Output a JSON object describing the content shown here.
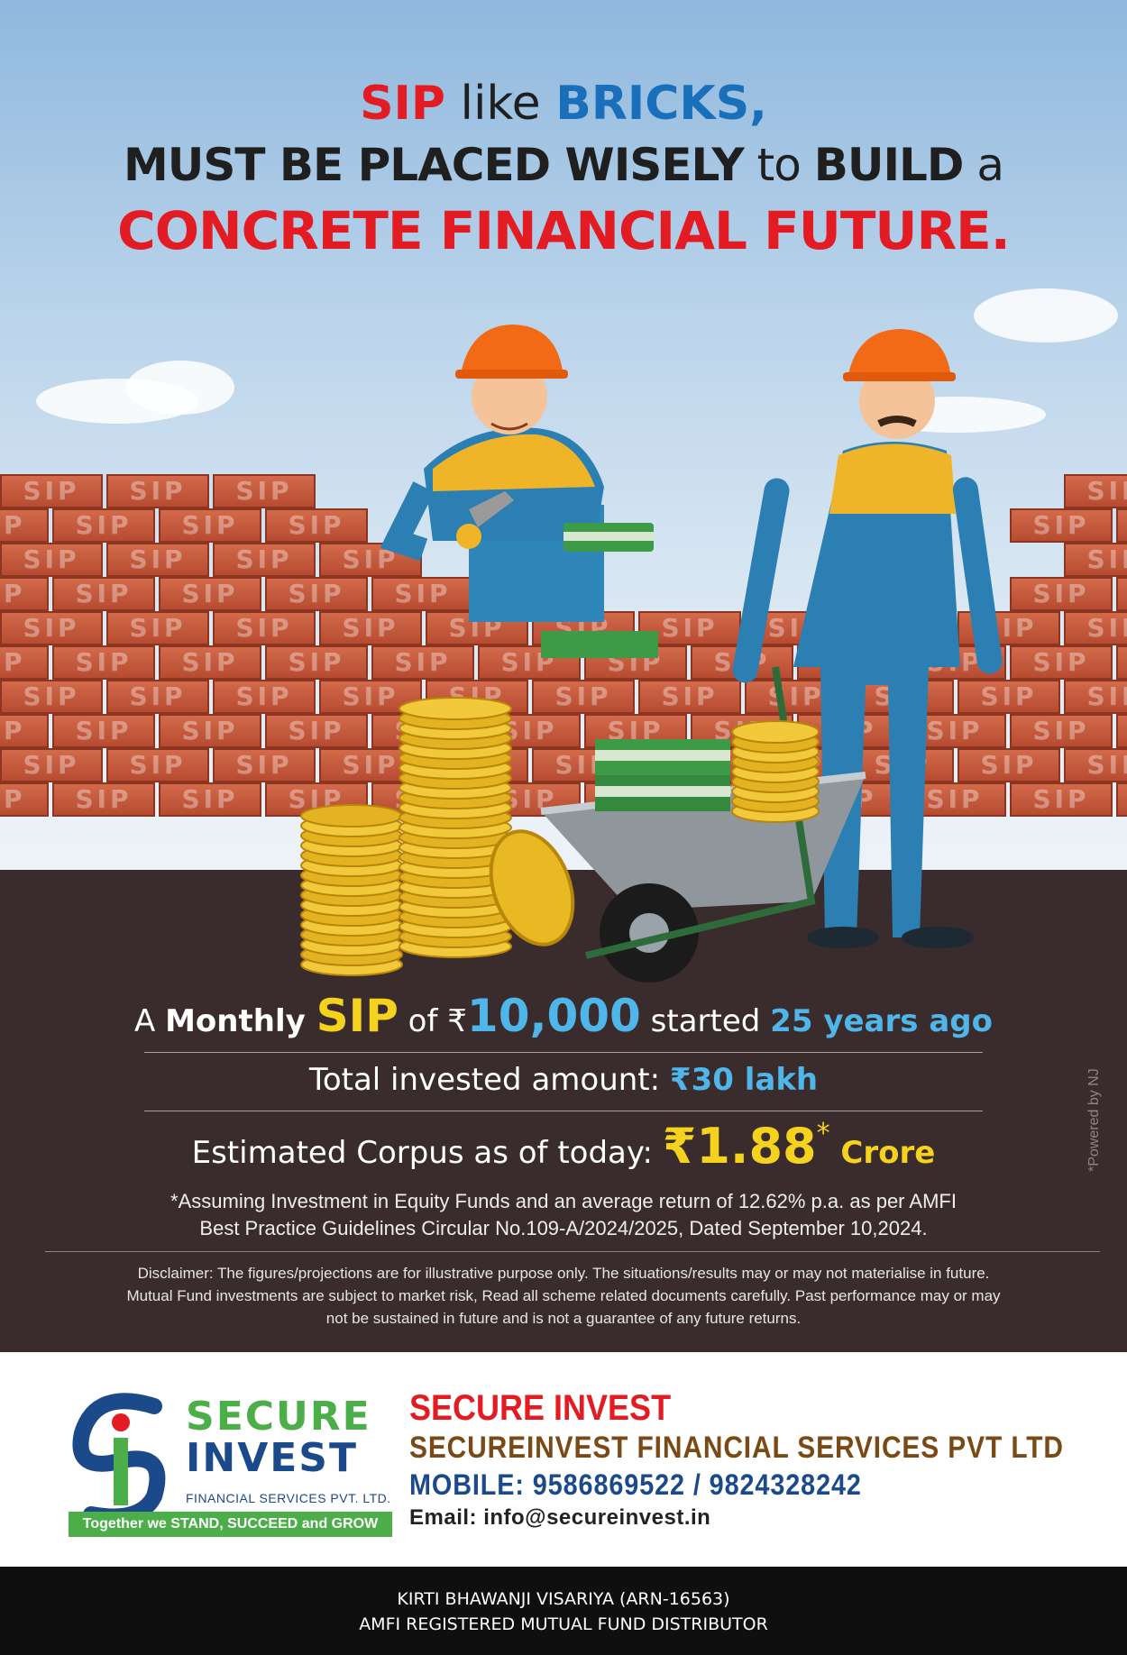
{
  "headline": {
    "l1_a": "SIP",
    "l1_b": " like ",
    "l1_c": "BRICKS,",
    "l2_a": "MUST BE PLACED WISELY",
    "l2_b": " to ",
    "l2_c": "BUILD",
    "l2_d": " a",
    "l3": "CONCRETE FINANCIAL FUTURE."
  },
  "brick_label": "SIP",
  "info": {
    "l1_a": "A ",
    "l1_b": "Monthly ",
    "l1_sip": "SIP",
    "l1_of": " of ",
    "l1_rupee": "₹",
    "l1_amount": "10,000",
    "l1_started": " started ",
    "l1_years": "25 years ago",
    "l2_label": "Total invested amount: ",
    "l2_value": "₹30 lakh",
    "l3_label": "Estimated Corpus as of today: ",
    "l3_value": "₹1.88",
    "l3_star": "*",
    "l3_unit": " Crore",
    "assumption_1": "*Assuming Investment in Equity Funds and an average return of 12.62% p.a. as per AMFI",
    "assumption_2": "Best Practice  Guidelines Circular No.109-A/2024/2025, Dated September 10,2024.",
    "disclaimer_1": "Disclaimer: The figures/projections are for illustrative purpose only. The situations/results may or may not materialise in future.",
    "disclaimer_2": "Mutual Fund investments are subject to market risk, Read all scheme related documents carefully. Past performance may or may",
    "disclaimer_3": "not be sustained in future and is not a guarantee of any future returns.",
    "powered": "*Powered by NJ"
  },
  "logo": {
    "word1": "SECURE",
    "word2": "INVEST",
    "sub": "FINANCIAL SERVICES PVT. LTD.",
    "tagline": "Together we STAND, SUCCEED and GROW"
  },
  "company": {
    "name": "SECURE INVEST",
    "full_name": "SECUREINVEST FINANCIAL SERVICES PVT LTD",
    "mobile": "MOBILE: 9586869522 / 9824328242",
    "email": "Email: info@secureinvest.in"
  },
  "footer": {
    "line1": "KIRTI BHAWANJI VISARIYA (ARN-16563)",
    "line2": "AMFI REGISTERED MUTUAL FUND DISTRIBUTOR"
  },
  "colors": {
    "red": "#e31b23",
    "blue": "#1a6fba",
    "gold": "#f5d21d",
    "cyan": "#4fb6ea",
    "green": "#4cae48",
    "navy": "#1b4a8b",
    "brown": "#7a4a16",
    "ground": "#3a2b2c"
  }
}
